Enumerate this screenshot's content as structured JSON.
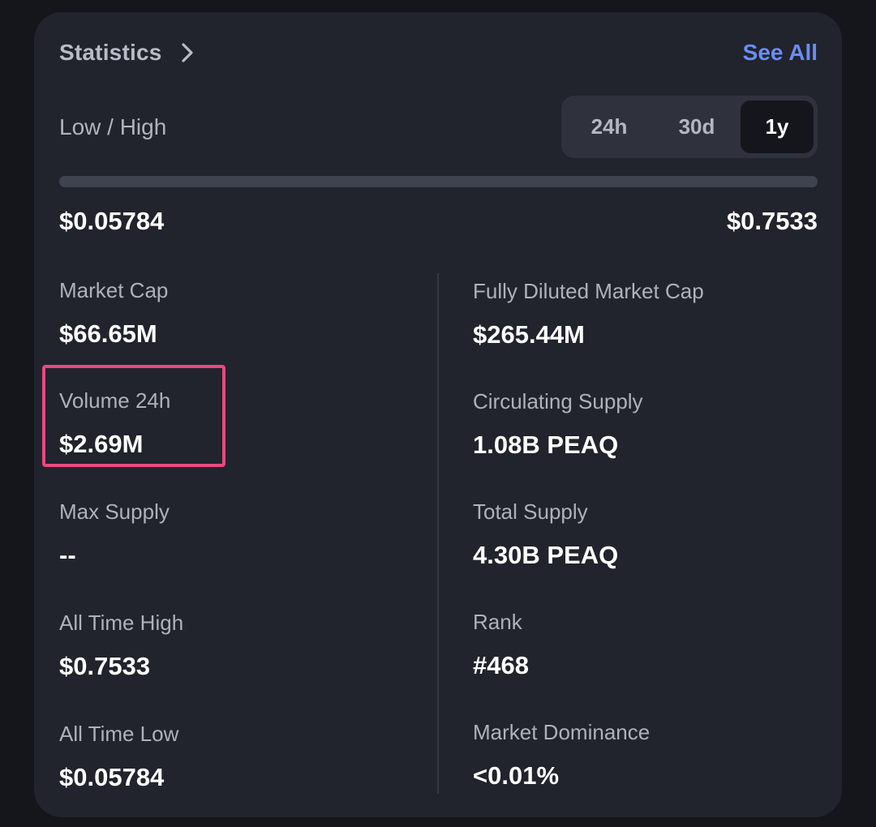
{
  "header": {
    "title": "Statistics",
    "see_all": "See All"
  },
  "range": {
    "label": "Low / High",
    "low": "$0.05784",
    "high": "$0.7533",
    "tabs": [
      {
        "label": "24h",
        "active": false
      },
      {
        "label": "30d",
        "active": false
      },
      {
        "label": "1y",
        "active": true
      }
    ],
    "selected": "1y"
  },
  "stats_left": [
    {
      "label": "Market Cap",
      "value": "$66.65M"
    },
    {
      "label": "Volume 24h",
      "value": "$2.69M"
    },
    {
      "label": "Max Supply",
      "value": "--"
    },
    {
      "label": "All Time High",
      "value": "$0.7533"
    },
    {
      "label": "All Time Low",
      "value": "$0.05784"
    }
  ],
  "stats_right": [
    {
      "label": "Fully Diluted Market Cap",
      "value": "$265.44M"
    },
    {
      "label": "Circulating Supply",
      "value": "1.08B PEAQ"
    },
    {
      "label": "Total Supply",
      "value": "4.30B PEAQ"
    },
    {
      "label": "Rank",
      "value": "#468"
    },
    {
      "label": "Market Dominance",
      "value": "<0.01%"
    }
  ],
  "colors": {
    "background": "#15161c",
    "card": "#21232d",
    "accent": "#6b8df2",
    "highlight": "#e8497e"
  },
  "icons": {
    "title_chevron": "chevron-right-icon"
  }
}
